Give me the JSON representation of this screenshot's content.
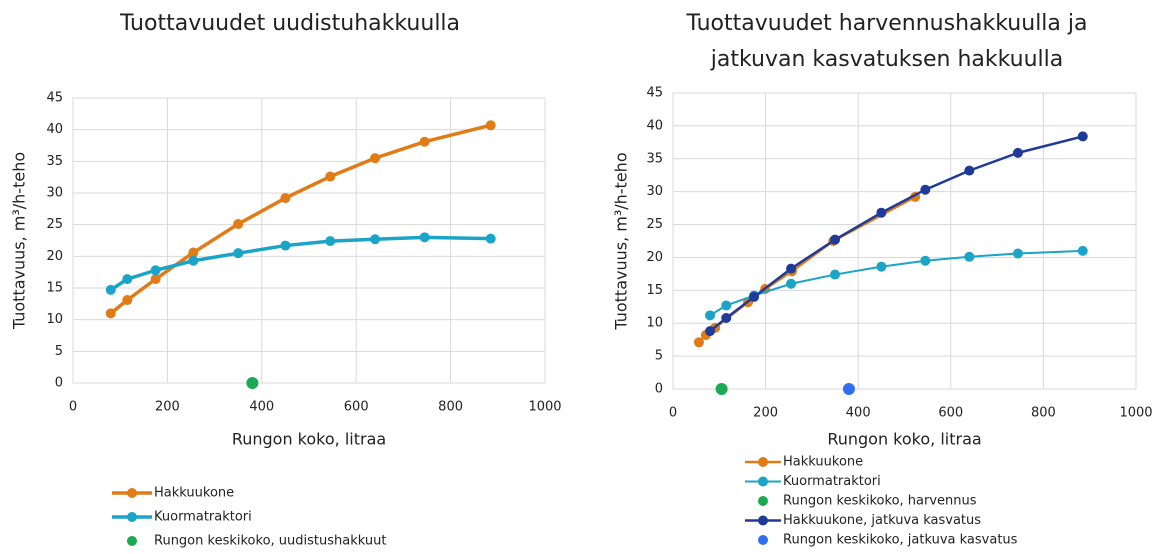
{
  "chart_data": [
    {
      "type": "line",
      "title": [
        "Tuottavuudet uudistuhakkuulla"
      ],
      "x_label": "Rungon koko, litraa",
      "y_label": "Tuottavuus, m³/h-teho",
      "xlim": [
        0,
        1000
      ],
      "xticks": [
        0,
        200,
        400,
        600,
        800,
        1000
      ],
      "ylim": [
        0,
        45
      ],
      "yticks": [
        0,
        5,
        10,
        15,
        20,
        25,
        30,
        35,
        40,
        45
      ],
      "grid": true,
      "legend": "bottom",
      "series": [
        {
          "name": "Hakkuukone",
          "color": "#e07b16",
          "line_width": 3.5,
          "x": [
            80,
            115,
            175,
            255,
            350,
            450,
            545,
            640,
            745,
            885
          ],
          "values": [
            11,
            13.1,
            16.4,
            20.6,
            25.1,
            29.2,
            32.6,
            35.5,
            38.1,
            40.7
          ]
        },
        {
          "name": "Kuormatraktori",
          "color": "#19a4c8",
          "line_width": 3.5,
          "x": [
            80,
            115,
            175,
            255,
            350,
            450,
            545,
            640,
            745,
            885
          ],
          "values": [
            14.7,
            16.4,
            17.8,
            19.3,
            20.5,
            21.7,
            22.4,
            22.7,
            23.0,
            22.8
          ]
        },
        {
          "name": "Rungon keskikoko, uudistushakkuut",
          "color": "#1aab52",
          "markers_only": true,
          "x": [
            380
          ],
          "values": [
            0
          ]
        }
      ]
    },
    {
      "type": "line",
      "title": [
        "Tuottavuudet harvennushakkuulla ja",
        "jatkuvan kasvatuksen hakkuulla"
      ],
      "x_label": "Rungon koko, litraa",
      "y_label": "Tuottavuus, m³/h-teho",
      "xlim": [
        0,
        1000
      ],
      "xticks": [
        0,
        200,
        400,
        600,
        800,
        1000
      ],
      "ylim": [
        0,
        45
      ],
      "yticks": [
        0,
        5,
        10,
        15,
        20,
        25,
        30,
        35,
        40,
        45
      ],
      "grid": true,
      "legend": "bottom",
      "series": [
        {
          "name": "Hakkuukone",
          "color": "#e07b16",
          "line_width": 2.5,
          "x": [
            56,
            71,
            91,
            162,
            199,
            257,
            346,
            523
          ],
          "values": [
            7.1,
            8.2,
            9.3,
            13.2,
            15.2,
            17.9,
            22.5,
            29.2
          ]
        },
        {
          "name": "Kuormatraktori",
          "color": "#19a4c8",
          "line_width": 2,
          "x": [
            80,
            115,
            175,
            255,
            350,
            450,
            545,
            640,
            745,
            885
          ],
          "values": [
            11.2,
            12.7,
            14.2,
            16.0,
            17.4,
            18.6,
            19.5,
            20.1,
            20.6,
            21.0
          ]
        },
        {
          "name": "Rungon keskikoko, harvennus",
          "color": "#1aab52",
          "markers_only": true,
          "x": [
            105
          ],
          "values": [
            0
          ]
        },
        {
          "name": "Hakkuukone, jatkuva kasvatus",
          "color": "#1f3a98",
          "line_width": 2.5,
          "x": [
            80,
            115,
            175,
            255,
            350,
            450,
            545,
            640,
            745,
            885
          ],
          "values": [
            8.8,
            10.8,
            14.0,
            18.3,
            22.7,
            26.8,
            30.3,
            33.2,
            35.9,
            38.4
          ]
        },
        {
          "name": "Rungon keskikoko, jatkuva kasvatus",
          "color": "#2f6ff0",
          "markers_only": true,
          "x": [
            380
          ],
          "values": [
            0
          ]
        }
      ]
    }
  ]
}
